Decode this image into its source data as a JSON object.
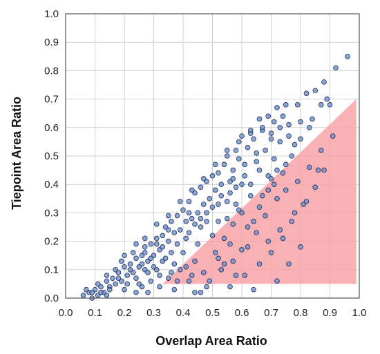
{
  "chart_data": {
    "type": "scatter",
    "title": "",
    "xlabel": "Overlap Area Ratio",
    "ylabel": "Tiepoint Area Ratio",
    "xlim": [
      0.0,
      1.0
    ],
    "ylim": [
      0.0,
      1.0
    ],
    "x_ticks": [
      "0.0",
      "0.1",
      "0.2",
      "0.3",
      "0.4",
      "0.5",
      "0.6",
      "0.7",
      "0.8",
      "0.9",
      "1.0"
    ],
    "y_ticks": [
      "0.0",
      "0.1",
      "0.2",
      "0.3",
      "0.4",
      "0.5",
      "0.6",
      "0.7",
      "0.8",
      "0.9",
      "1.0"
    ],
    "grid": true,
    "colors": {
      "points": "#6a8cc9",
      "point_edge": "#1f2f55",
      "region": "#f7a3a8"
    },
    "shaded_region": {
      "vertices": [
        [
          0.33,
          0.05
        ],
        [
          0.99,
          0.7
        ],
        [
          0.99,
          0.05
        ]
      ]
    },
    "series": [
      {
        "points": [
          [
            0.96,
            0.85
          ],
          [
            0.92,
            0.81
          ],
          [
            0.88,
            0.76
          ],
          [
            0.89,
            0.7
          ],
          [
            0.85,
            0.73
          ],
          [
            0.82,
            0.72
          ],
          [
            0.87,
            0.68
          ],
          [
            0.9,
            0.68
          ],
          [
            0.79,
            0.68
          ],
          [
            0.75,
            0.68
          ],
          [
            0.72,
            0.67
          ],
          [
            0.74,
            0.64
          ],
          [
            0.69,
            0.64
          ],
          [
            0.66,
            0.63
          ],
          [
            0.71,
            0.62
          ],
          [
            0.76,
            0.61
          ],
          [
            0.8,
            0.62
          ],
          [
            0.84,
            0.63
          ],
          [
            0.67,
            0.59
          ],
          [
            0.63,
            0.58
          ],
          [
            0.6,
            0.57
          ],
          [
            0.64,
            0.56
          ],
          [
            0.7,
            0.58
          ],
          [
            0.73,
            0.55
          ],
          [
            0.78,
            0.54
          ],
          [
            0.62,
            0.53
          ],
          [
            0.58,
            0.52
          ],
          [
            0.55,
            0.5
          ],
          [
            0.59,
            0.49
          ],
          [
            0.65,
            0.51
          ],
          [
            0.68,
            0.52
          ],
          [
            0.71,
            0.49
          ],
          [
            0.75,
            0.47
          ],
          [
            0.54,
            0.47
          ],
          [
            0.57,
            0.45
          ],
          [
            0.52,
            0.44
          ],
          [
            0.5,
            0.43
          ],
          [
            0.56,
            0.41
          ],
          [
            0.61,
            0.43
          ],
          [
            0.66,
            0.45
          ],
          [
            0.69,
            0.43
          ],
          [
            0.72,
            0.45
          ],
          [
            0.48,
            0.41
          ],
          [
            0.46,
            0.39
          ],
          [
            0.51,
            0.38
          ],
          [
            0.53,
            0.36
          ],
          [
            0.58,
            0.39
          ],
          [
            0.63,
            0.4
          ],
          [
            0.44,
            0.37
          ],
          [
            0.42,
            0.34
          ],
          [
            0.47,
            0.33
          ],
          [
            0.5,
            0.32
          ],
          [
            0.55,
            0.34
          ],
          [
            0.45,
            0.3
          ],
          [
            0.4,
            0.31
          ],
          [
            0.38,
            0.29
          ],
          [
            0.43,
            0.28
          ],
          [
            0.48,
            0.27
          ],
          [
            0.36,
            0.27
          ],
          [
            0.34,
            0.25
          ],
          [
            0.39,
            0.24
          ],
          [
            0.42,
            0.23
          ],
          [
            0.46,
            0.25
          ],
          [
            0.33,
            0.22
          ],
          [
            0.31,
            0.21
          ],
          [
            0.35,
            0.2
          ],
          [
            0.38,
            0.19
          ],
          [
            0.41,
            0.21
          ],
          [
            0.29,
            0.19
          ],
          [
            0.27,
            0.18
          ],
          [
            0.32,
            0.17
          ],
          [
            0.36,
            0.16
          ],
          [
            0.3,
            0.15
          ],
          [
            0.26,
            0.15
          ],
          [
            0.24,
            0.14
          ],
          [
            0.28,
            0.13
          ],
          [
            0.33,
            0.13
          ],
          [
            0.22,
            0.12
          ],
          [
            0.25,
            0.11
          ],
          [
            0.2,
            0.11
          ],
          [
            0.23,
            0.09
          ],
          [
            0.27,
            0.1
          ],
          [
            0.31,
            0.1
          ],
          [
            0.18,
            0.09
          ],
          [
            0.21,
            0.08
          ],
          [
            0.24,
            0.07
          ],
          [
            0.16,
            0.07
          ],
          [
            0.19,
            0.06
          ],
          [
            0.14,
            0.06
          ],
          [
            0.17,
            0.05
          ],
          [
            0.21,
            0.05
          ],
          [
            0.12,
            0.04
          ],
          [
            0.15,
            0.04
          ],
          [
            0.1,
            0.03
          ],
          [
            0.13,
            0.02
          ],
          [
            0.08,
            0.02
          ],
          [
            0.11,
            0.01
          ],
          [
            0.06,
            0.01
          ],
          [
            0.09,
            0.0
          ],
          [
            0.14,
            0.01
          ],
          [
            0.26,
            0.04
          ],
          [
            0.29,
            0.06
          ],
          [
            0.32,
            0.04
          ],
          [
            0.28,
            0.02
          ],
          [
            0.35,
            0.07
          ],
          [
            0.39,
            0.1
          ],
          [
            0.44,
            0.13
          ],
          [
            0.37,
            0.03
          ],
          [
            0.42,
            0.06
          ],
          [
            0.47,
            0.09
          ],
          [
            0.51,
            0.16
          ],
          [
            0.54,
            0.21
          ],
          [
            0.57,
            0.26
          ],
          [
            0.6,
            0.3
          ],
          [
            0.49,
            0.06
          ],
          [
            0.53,
            0.1
          ],
          [
            0.57,
            0.13
          ],
          [
            0.62,
            0.18
          ],
          [
            0.65,
            0.23
          ],
          [
            0.68,
            0.29
          ],
          [
            0.72,
            0.35
          ],
          [
            0.61,
            0.08
          ],
          [
            0.66,
            0.12
          ],
          [
            0.7,
            0.16
          ],
          [
            0.74,
            0.21
          ],
          [
            0.77,
            0.27
          ],
          [
            0.81,
            0.33
          ],
          [
            0.85,
            0.39
          ],
          [
            0.64,
            0.03
          ],
          [
            0.72,
            0.06
          ],
          [
            0.76,
            0.12
          ],
          [
            0.8,
            0.18
          ],
          [
            0.86,
            0.45
          ],
          [
            0.88,
            0.45
          ],
          [
            0.78,
            0.3
          ],
          [
            0.82,
            0.34
          ],
          [
            0.56,
            0.04
          ],
          [
            0.6,
            0.17
          ],
          [
            0.46,
            0.02
          ],
          [
            0.52,
            0.27
          ],
          [
            0.63,
            0.36
          ],
          [
            0.69,
            0.38
          ],
          [
            0.58,
            0.33
          ],
          [
            0.4,
            0.16
          ],
          [
            0.45,
            0.19
          ],
          [
            0.5,
            0.22
          ],
          [
            0.55,
            0.28
          ],
          [
            0.59,
            0.31
          ],
          [
            0.37,
            0.12
          ],
          [
            0.43,
            0.08
          ],
          [
            0.3,
            0.11
          ],
          [
            0.25,
            0.05
          ],
          [
            0.19,
            0.13
          ],
          [
            0.23,
            0.16
          ],
          [
            0.27,
            0.21
          ],
          [
            0.31,
            0.26
          ],
          [
            0.35,
            0.29
          ],
          [
            0.39,
            0.34
          ],
          [
            0.43,
            0.38
          ],
          [
            0.47,
            0.42
          ],
          [
            0.51,
            0.47
          ],
          [
            0.55,
            0.52
          ],
          [
            0.59,
            0.55
          ],
          [
            0.63,
            0.59
          ],
          [
            0.67,
            0.6
          ],
          [
            0.7,
            0.56
          ],
          [
            0.73,
            0.6
          ],
          [
            0.76,
            0.57
          ],
          [
            0.61,
            0.47
          ],
          [
            0.65,
            0.48
          ],
          [
            0.53,
            0.4
          ],
          [
            0.57,
            0.42
          ],
          [
            0.49,
            0.35
          ],
          [
            0.41,
            0.27
          ],
          [
            0.37,
            0.23
          ],
          [
            0.33,
            0.18
          ],
          [
            0.29,
            0.14
          ],
          [
            0.26,
            0.12
          ],
          [
            0.22,
            0.1
          ],
          [
            0.18,
            0.07
          ],
          [
            0.15,
            0.03
          ],
          [
            0.12,
            0.02
          ],
          [
            0.71,
            0.4
          ],
          [
            0.74,
            0.44
          ],
          [
            0.77,
            0.5
          ],
          [
            0.8,
            0.56
          ],
          [
            0.83,
            0.6
          ],
          [
            0.62,
            0.25
          ],
          [
            0.66,
            0.32
          ],
          [
            0.48,
            0.3
          ],
          [
            0.44,
            0.26
          ],
          [
            0.34,
            0.14
          ],
          [
            0.28,
            0.09
          ],
          [
            0.2,
            0.03
          ],
          [
            0.24,
            0.02
          ],
          [
            0.38,
            0.06
          ],
          [
            0.41,
            0.11
          ],
          [
            0.52,
            0.14
          ],
          [
            0.56,
            0.19
          ],
          [
            0.64,
            0.27
          ],
          [
            0.67,
            0.36
          ],
          [
            0.7,
            0.42
          ],
          [
            0.75,
            0.38
          ],
          [
            0.79,
            0.41
          ],
          [
            0.83,
            0.46
          ],
          [
            0.87,
            0.52
          ],
          [
            0.91,
            0.57
          ],
          [
            0.73,
            0.24
          ],
          [
            0.69,
            0.2
          ],
          [
            0.58,
            0.08
          ],
          [
            0.54,
            0.12
          ],
          [
            0.48,
            0.04
          ],
          [
            0.44,
            0.02
          ],
          [
            0.36,
            0.09
          ],
          [
            0.32,
            0.08
          ],
          [
            0.6,
            0.4
          ],
          [
            0.56,
            0.37
          ],
          [
            0.52,
            0.33
          ],
          [
            0.46,
            0.28
          ],
          [
            0.42,
            0.3
          ],
          [
            0.35,
            0.24
          ],
          [
            0.31,
            0.19
          ],
          [
            0.27,
            0.16
          ],
          [
            0.24,
            0.19
          ],
          [
            0.2,
            0.15
          ],
          [
            0.17,
            0.1
          ],
          [
            0.14,
            0.08
          ],
          [
            0.11,
            0.05
          ],
          [
            0.07,
            0.03
          ],
          [
            0.09,
            0.02
          ]
        ]
      }
    ]
  }
}
